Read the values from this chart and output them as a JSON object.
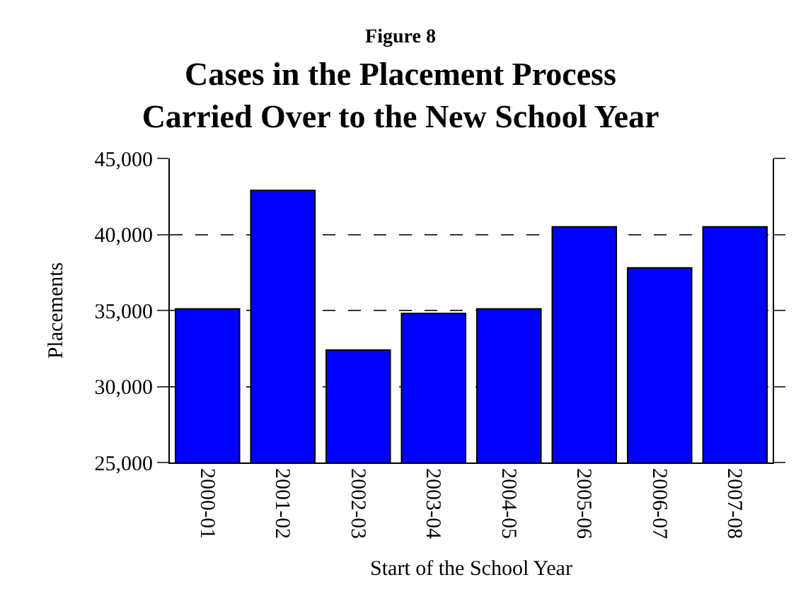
{
  "chart_data": {
    "type": "bar",
    "title": "Figure 8",
    "subtitle": "Cases in the Placement Process\nCarried Over to the New School Year",
    "xlabel": "Start of the School Year",
    "ylabel": "Placements",
    "categories": [
      "2000-01",
      "2001-02",
      "2002-03",
      "2003-04",
      "2004-05",
      "2005-06",
      "2006-07",
      "2007-08"
    ],
    "series": [
      {
        "color": "#0000ff",
        "values": [
          35100,
          42900,
          32400,
          34800,
          35100,
          40500,
          37800,
          40500
        ]
      }
    ],
    "ylim": [
      25000,
      45000
    ],
    "yticks": [
      {
        "value": 25000,
        "label": "25,000"
      },
      {
        "value": 30000,
        "label": "30,000"
      },
      {
        "value": 35000,
        "label": "35,000"
      },
      {
        "value": 40000,
        "label": "40,000"
      },
      {
        "value": 45000,
        "label": "45,000"
      }
    ],
    "grid": "y",
    "line_style": "dashed"
  }
}
